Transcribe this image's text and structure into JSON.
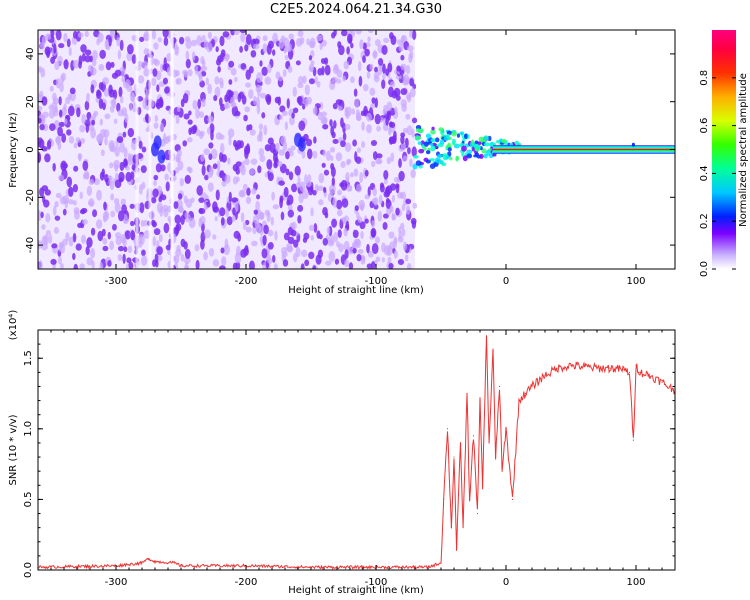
{
  "title": "C2E5.2024.064.21.34.G30",
  "colors": {
    "scatter_purple": "#7a2df0",
    "scatter_light": "#c9a6ff",
    "line_red": "#ee3333",
    "axis": "#000000"
  },
  "chart_data": [
    {
      "type": "heatmap",
      "title": "C2E5.2024.064.21.34.G30",
      "xlabel": "Height of straight line (km)",
      "ylabel": "Frequency (Hz)",
      "xlim": [
        -360,
        130
      ],
      "ylim": [
        -50,
        50
      ],
      "xticks": [
        -300,
        -200,
        -100,
        0,
        100
      ],
      "yticks": [
        -40,
        -20,
        0,
        20,
        40
      ],
      "features": {
        "noise_region_x": [
          -360,
          -70
        ],
        "transition_x": [
          -70,
          10
        ],
        "signal_line_freq": 0,
        "signal_line_amplitude": 0.9
      },
      "colorbar": {
        "label": "Normalized spectral amplitude",
        "ticks": [
          0.0,
          0.2,
          0.4,
          0.6,
          0.8
        ],
        "range": [
          0,
          1
        ]
      }
    },
    {
      "type": "line",
      "xlabel": "Height of straight line (km)",
      "ylabel": "SNR (10 * v/v)",
      "y_exponent": "(x10⁴)",
      "xlim": [
        -360,
        130
      ],
      "ylim": [
        0,
        1.7
      ],
      "xticks": [
        -300,
        -200,
        -100,
        0,
        100
      ],
      "yticks": [
        0.0,
        0.5,
        1.0,
        1.5
      ],
      "ytick_labels": [
        "0.0",
        "0.5",
        "1.0",
        "1.5"
      ],
      "series": [
        {
          "x": [
            -360,
            -300,
            -280,
            -275,
            -270,
            -255,
            -250,
            -200,
            -150,
            -100,
            -60,
            -50,
            -48,
            -45,
            -42,
            -40,
            -38,
            -35,
            -33,
            -30,
            -28,
            -25,
            -22,
            -20,
            -18,
            -15,
            -13,
            -10,
            -8,
            -5,
            -3,
            0,
            5,
            10,
            15,
            20,
            30,
            40,
            50,
            60,
            70,
            80,
            90,
            95,
            98,
            100,
            103,
            110,
            120,
            130
          ],
          "values": [
            0.02,
            0.03,
            0.05,
            0.08,
            0.06,
            0.05,
            0.03,
            0.03,
            0.02,
            0.02,
            0.02,
            0.05,
            0.5,
            1.0,
            0.3,
            0.8,
            0.15,
            0.9,
            0.3,
            1.25,
            0.5,
            0.95,
            0.4,
            1.2,
            0.6,
            1.65,
            0.9,
            1.55,
            0.8,
            1.3,
            0.7,
            1.0,
            0.5,
            1.2,
            1.25,
            1.3,
            1.38,
            1.43,
            1.45,
            1.44,
            1.43,
            1.43,
            1.42,
            1.4,
            0.92,
            1.45,
            1.4,
            1.38,
            1.33,
            1.27
          ]
        }
      ]
    }
  ]
}
